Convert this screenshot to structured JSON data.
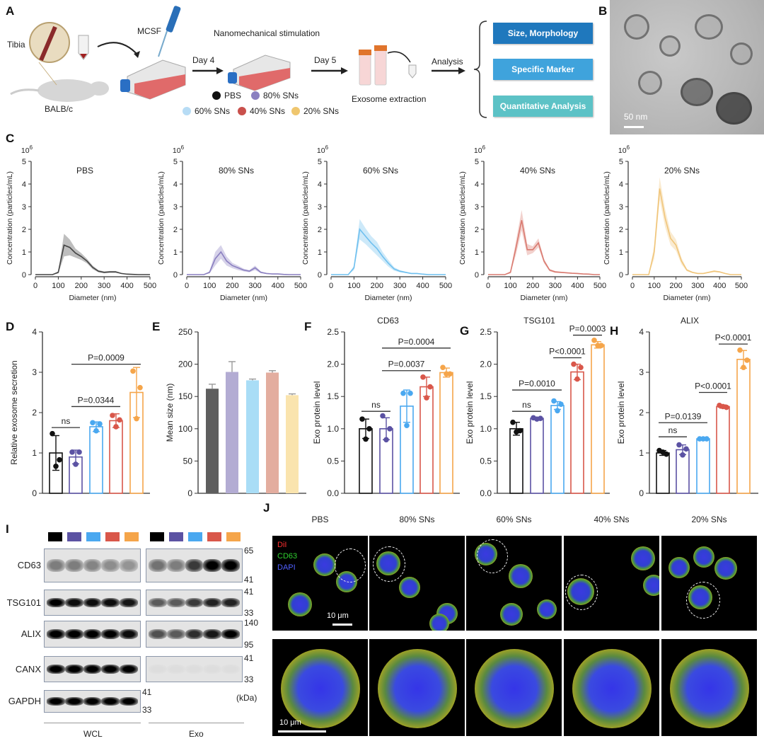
{
  "panel_labels": {
    "A": "A",
    "B": "B",
    "C": "C",
    "D": "D",
    "E": "E",
    "F": "F",
    "G": "G",
    "H": "H",
    "I": "I",
    "J": "J"
  },
  "groups": [
    {
      "name": "PBS",
      "color": "#111111"
    },
    {
      "name": "80% SNs",
      "color": "#5b52a3"
    },
    {
      "name": "60% SNs",
      "color": "#4aa8f0"
    },
    {
      "name": "40% SNs",
      "color": "#d9574a"
    },
    {
      "name": "20% SNs",
      "color": "#f5a54a"
    }
  ],
  "panelA": {
    "tibia": "Tibia",
    "mouse": "BALB/c",
    "mcsf": "MCSF",
    "stim_title": "Nanomechanical stimulation",
    "day4": "Day 4",
    "day5": "Day 5",
    "extraction": "Exosome extraction",
    "analysis": "Analysis",
    "legend": [
      {
        "label": "PBS",
        "color": "#111111"
      },
      {
        "label": "80% SNs",
        "color": "#8b80c0"
      },
      {
        "label": "60% SNs",
        "color": "#b7dcf5"
      },
      {
        "label": "40% SNs",
        "color": "#c9504c"
      },
      {
        "label": "20% SNs",
        "color": "#efc66e"
      }
    ],
    "analysis_boxes": [
      {
        "label": "Size, Morphology",
        "color": "#1f78bd"
      },
      {
        "label": "Specific Marker",
        "color": "#3fa3dc"
      },
      {
        "label": "Quantitative Analysis",
        "color": "#5cc2c6"
      }
    ]
  },
  "panelB": {
    "scale_bar": "50 nm"
  },
  "chart_data": [
    {
      "id": "C1",
      "type": "line",
      "title": "PBS",
      "xlabel": "Diameter (nm)",
      "ylabel": "Concentration (particles/mL)",
      "yexp": "10",
      "yexp_power": "6",
      "color": "#444444",
      "xlim": [
        0,
        500
      ],
      "ylim": [
        0,
        5
      ],
      "xticks": [
        "0",
        "100",
        "200",
        "300",
        "400",
        "500"
      ],
      "yticks": [
        "0",
        "1",
        "2",
        "3",
        "4",
        "5"
      ],
      "x": [
        0,
        25,
        50,
        75,
        100,
        125,
        150,
        175,
        200,
        225,
        250,
        275,
        300,
        325,
        350,
        375,
        400,
        425,
        450,
        475,
        500
      ],
      "y": [
        0,
        0,
        0,
        0,
        0.1,
        1.3,
        1.2,
        0.95,
        0.8,
        0.6,
        0.32,
        0.15,
        0.1,
        0.12,
        0.12,
        0.05,
        0.02,
        0.01,
        0,
        0,
        0
      ],
      "band": [
        0,
        0,
        0,
        0,
        0.05,
        0.5,
        0.35,
        0.2,
        0.15,
        0.1,
        0.08,
        0.05,
        0.04,
        0.04,
        0.04,
        0.02,
        0.01,
        0,
        0,
        0,
        0
      ]
    },
    {
      "id": "C2",
      "type": "line",
      "title": "80% SNs",
      "xlabel": "Diameter (nm)",
      "ylabel": "Concentration (particles/mL)",
      "yexp": "10",
      "yexp_power": "6",
      "color": "#8a7fc0",
      "xlim": [
        0,
        500
      ],
      "ylim": [
        0,
        5
      ],
      "xticks": [
        "0",
        "100",
        "200",
        "300",
        "400",
        "500"
      ],
      "yticks": [
        "0",
        "1",
        "2",
        "3",
        "4",
        "5"
      ],
      "x": [
        0,
        25,
        50,
        75,
        100,
        125,
        150,
        175,
        200,
        225,
        250,
        275,
        300,
        325,
        350,
        375,
        400,
        425,
        450,
        475,
        500
      ],
      "y": [
        0,
        0,
        0,
        0,
        0.1,
        0.7,
        1.0,
        0.6,
        0.4,
        0.3,
        0.2,
        0.15,
        0.3,
        0.1,
        0.05,
        0.03,
        0.03,
        0.01,
        0,
        0,
        0
      ],
      "band": [
        0,
        0,
        0,
        0,
        0.05,
        0.3,
        0.3,
        0.2,
        0.12,
        0.1,
        0.06,
        0.05,
        0.1,
        0.04,
        0.02,
        0.01,
        0.01,
        0,
        0,
        0,
        0
      ]
    },
    {
      "id": "C3",
      "type": "line",
      "title": "60% SNs",
      "xlabel": "Diameter (nm)",
      "ylabel": "Concentration (particles/mL)",
      "yexp": "10",
      "yexp_power": "6",
      "color": "#6fc0ef",
      "xlim": [
        0,
        500
      ],
      "ylim": [
        0,
        5
      ],
      "xticks": [
        "0",
        "100",
        "200",
        "300",
        "400",
        "500"
      ],
      "yticks": [
        "0",
        "1",
        "2",
        "3",
        "4",
        "5"
      ],
      "x": [
        0,
        25,
        50,
        75,
        100,
        125,
        150,
        175,
        200,
        225,
        250,
        275,
        300,
        325,
        350,
        375,
        400,
        425,
        450,
        475,
        500
      ],
      "y": [
        0,
        0,
        0,
        0,
        0.3,
        2.0,
        1.7,
        1.4,
        1.15,
        0.8,
        0.5,
        0.25,
        0.15,
        0.1,
        0.05,
        0.05,
        0.02,
        0,
        0,
        0,
        0
      ],
      "band": [
        0,
        0,
        0,
        0,
        0.1,
        0.45,
        0.35,
        0.3,
        0.3,
        0.2,
        0.15,
        0.08,
        0.05,
        0.03,
        0.02,
        0.02,
        0.01,
        0,
        0,
        0,
        0
      ]
    },
    {
      "id": "C4",
      "type": "line",
      "title": "40% SNs",
      "xlabel": "Diameter (nm)",
      "ylabel": "Concentration (particles/mL)",
      "yexp": "10",
      "yexp_power": "6",
      "color": "#d97a70",
      "xlim": [
        0,
        500
      ],
      "ylim": [
        0,
        5
      ],
      "xticks": [
        "0",
        "100",
        "200",
        "300",
        "400",
        "500"
      ],
      "yticks": [
        "0",
        "1",
        "2",
        "3",
        "4",
        "5"
      ],
      "x": [
        0,
        25,
        50,
        75,
        100,
        125,
        150,
        175,
        200,
        225,
        250,
        275,
        300,
        325,
        350,
        375,
        400,
        425,
        450,
        475,
        500
      ],
      "y": [
        0,
        0,
        0,
        0,
        0.1,
        1.2,
        2.4,
        1.1,
        1.1,
        1.4,
        0.6,
        0.2,
        0.12,
        0.1,
        0.08,
        0.06,
        0.05,
        0.03,
        0.02,
        0,
        0
      ],
      "band": [
        0,
        0,
        0,
        0,
        0.05,
        0.3,
        0.45,
        0.25,
        0.15,
        0.2,
        0.1,
        0.05,
        0.04,
        0.03,
        0.02,
        0.02,
        0.02,
        0.01,
        0.01,
        0,
        0
      ]
    },
    {
      "id": "C5",
      "type": "line",
      "title": "20% SNs",
      "xlabel": "Diameter (nm)",
      "ylabel": "Concentration (particles/mL)",
      "yexp": "10",
      "yexp_power": "6",
      "color": "#f0c57a",
      "xlim": [
        0,
        500
      ],
      "ylim": [
        0,
        5
      ],
      "xticks": [
        "0",
        "100",
        "200",
        "300",
        "400",
        "500"
      ],
      "yticks": [
        "0",
        "1",
        "2",
        "3",
        "4",
        "5"
      ],
      "x": [
        0,
        25,
        50,
        75,
        100,
        125,
        150,
        175,
        200,
        225,
        250,
        275,
        300,
        325,
        350,
        375,
        400,
        425,
        450,
        475,
        500
      ],
      "y": [
        0,
        0,
        0,
        0,
        1.0,
        3.8,
        2.5,
        1.6,
        1.3,
        0.6,
        0.2,
        0.1,
        0.05,
        0.05,
        0.1,
        0.15,
        0.12,
        0.05,
        0,
        0,
        0
      ],
      "band": [
        0,
        0,
        0,
        0,
        0.3,
        0.5,
        0.4,
        0.3,
        0.25,
        0.15,
        0.05,
        0.03,
        0.02,
        0.02,
        0.03,
        0.04,
        0.03,
        0.02,
        0,
        0,
        0
      ]
    },
    {
      "id": "D",
      "type": "bar",
      "style": "open",
      "title": "",
      "ylabel": "Relative  exosome secretion",
      "ylim": [
        0,
        4
      ],
      "yticks": [
        "0",
        "1",
        "2",
        "3",
        "4"
      ],
      "categories": [
        "PBS",
        "80% SNs",
        "60% SNs",
        "40% SNs",
        "20% SNs"
      ],
      "values": [
        1.0,
        0.9,
        1.65,
        1.8,
        2.5
      ],
      "sd": [
        0.43,
        0.17,
        0.12,
        0.17,
        0.62
      ],
      "points": [
        [
          1.48,
          0.83,
          0.67
        ],
        [
          1.02,
          1.02,
          0.72
        ],
        [
          1.75,
          1.72,
          1.55
        ],
        [
          1.93,
          1.82,
          1.65
        ],
        [
          3.03,
          2.62,
          1.85
        ]
      ],
      "comparisons": [
        {
          "from": 0,
          "to": 1,
          "y": 1.63,
          "label": "ns"
        },
        {
          "from": 1,
          "to": 3,
          "y": 2.15,
          "label": "P=0.0344"
        },
        {
          "from": 1,
          "to": 4,
          "y": 3.2,
          "label": "P=0.0009"
        }
      ]
    },
    {
      "id": "E",
      "type": "bar",
      "style": "filled",
      "title": "",
      "ylabel": "Mean size (nm)",
      "ylim": [
        0,
        250
      ],
      "yticks": [
        "0",
        "50",
        "100",
        "150",
        "200",
        "250"
      ],
      "categories": [
        "PBS",
        "80% SNs",
        "60% SNs",
        "40% SNs",
        "20% SNs"
      ],
      "fill_colors": [
        "#5e5e5e",
        "#b3acd3",
        "#a9ddf6",
        "#e3ad9f",
        "#fae4ae"
      ],
      "values": [
        162,
        188,
        175,
        187,
        152
      ],
      "sd": [
        7,
        16,
        2,
        3,
        2
      ],
      "points": [],
      "comparisons": []
    },
    {
      "id": "F",
      "type": "bar",
      "style": "open",
      "title": "CD63",
      "ylabel": "Exo protein level",
      "ylim": [
        0,
        2.5
      ],
      "yticks": [
        "0.0",
        "0.5",
        "1.0",
        "1.5",
        "2.0",
        "2.5"
      ],
      "categories": [
        "PBS",
        "80% SNs",
        "60% SNs",
        "40% SNs",
        "20% SNs"
      ],
      "values": [
        1.0,
        1.0,
        1.35,
        1.65,
        1.87
      ],
      "sd": [
        0.15,
        0.17,
        0.25,
        0.15,
        0.07
      ],
      "points": [
        [
          1.15,
          1.0,
          0.84
        ],
        [
          1.2,
          1.0,
          0.83
        ],
        [
          1.55,
          1.55,
          1.05
        ],
        [
          1.8,
          1.65,
          1.48
        ],
        [
          1.95,
          1.85,
          1.85
        ]
      ],
      "comparisons": [
        {
          "from": 0,
          "to": 1,
          "y": 1.27,
          "label": "ns"
        },
        {
          "from": 1,
          "to": 3,
          "y": 1.9,
          "label": "P=0.0037"
        },
        {
          "from": 1,
          "to": 4,
          "y": 2.25,
          "label": "P=0.0004"
        }
      ]
    },
    {
      "id": "G",
      "type": "bar",
      "style": "open",
      "title": "TSG101",
      "ylabel": "Exo protein level",
      "ylim": [
        0,
        2.5
      ],
      "yticks": [
        "0.0",
        "0.5",
        "1.0",
        "1.5",
        "2.0",
        "2.5"
      ],
      "categories": [
        "PBS",
        "80% SNs",
        "60% SNs",
        "40% SNs",
        "20% SNs"
      ],
      "values": [
        1.0,
        1.16,
        1.36,
        1.88,
        2.3
      ],
      "sd": [
        0.1,
        0.01,
        0.06,
        0.12,
        0.05
      ],
      "points": [
        [
          1.1,
          0.97,
          0.95
        ],
        [
          1.17,
          1.16,
          1.15
        ],
        [
          1.43,
          1.38,
          1.28
        ],
        [
          2.0,
          1.95,
          1.77
        ],
        [
          2.37,
          2.29,
          2.29
        ]
      ],
      "comparisons": [
        {
          "from": 0,
          "to": 1,
          "y": 1.27,
          "label": "ns"
        },
        {
          "from": 0,
          "to": 2,
          "y": 1.6,
          "label": "P=0.0010"
        },
        {
          "from": 2,
          "to": 3,
          "y": 2.1,
          "label": "P<0.0001"
        },
        {
          "from": 3,
          "to": 4,
          "y": 2.45,
          "label": "P=0.0003"
        }
      ]
    },
    {
      "id": "H",
      "type": "bar",
      "style": "open",
      "title": "ALIX",
      "ylabel": "Exo protein level",
      "ylim": [
        0,
        4
      ],
      "yticks": [
        "0",
        "1",
        "2",
        "3",
        "4"
      ],
      "categories": [
        "PBS",
        "80% SNs",
        "60% SNs",
        "40% SNs",
        "20% SNs"
      ],
      "values": [
        1.0,
        1.08,
        1.35,
        2.15,
        3.32
      ],
      "sd": [
        0.06,
        0.12,
        0.01,
        0.04,
        0.22
      ],
      "points": [
        [
          1.06,
          0.97,
          1.02
        ],
        [
          1.2,
          1.1,
          0.95
        ],
        [
          1.35,
          1.35,
          1.35
        ],
        [
          2.18,
          2.13,
          2.15
        ],
        [
          3.55,
          3.3,
          3.12
        ]
      ],
      "comparisons": [
        {
          "from": 0,
          "to": 1,
          "y": 1.4,
          "label": "ns"
        },
        {
          "from": 0,
          "to": 2,
          "y": 1.75,
          "label": "P=0.0139"
        },
        {
          "from": 2,
          "to": 3,
          "y": 2.5,
          "label": "P<0.0001"
        },
        {
          "from": 3,
          "to": 4,
          "y": 3.7,
          "label": "P<0.0001"
        }
      ]
    }
  ],
  "panelI": {
    "rows": [
      {
        "label": "CD63",
        "wcl": [
          0.45,
          0.45,
          0.42,
          0.38,
          0.35
        ],
        "exo": [
          0.5,
          0.45,
          0.75,
          1,
          1
        ],
        "markers": [
          "65",
          "41"
        ]
      },
      {
        "label": "TSG101",
        "wcl": [
          1,
          0.95,
          0.95,
          0.95,
          0.9
        ],
        "exo": [
          0.6,
          0.6,
          0.75,
          0.85,
          0.85
        ],
        "markers": [
          "41",
          "33"
        ]
      },
      {
        "label": "ALIX",
        "wcl": [
          1,
          1,
          1,
          1,
          0.95
        ],
        "exo": [
          0.65,
          0.6,
          0.8,
          0.9,
          1
        ],
        "markers": [
          "140",
          "95"
        ]
      },
      {
        "label": "CANX",
        "wcl": [
          1,
          1,
          1,
          1,
          1
        ],
        "exo": [
          0.03,
          0.03,
          0.03,
          0.03,
          0.03
        ],
        "markers": [
          "41",
          "33"
        ]
      },
      {
        "label": "GAPDH",
        "wcl": [
          1,
          1,
          1,
          1,
          1
        ],
        "exo": null,
        "markers": [
          "41",
          "33"
        ]
      }
    ],
    "unit": "(kDa)",
    "wcl_label": "WCL",
    "exo_label": "Exo"
  },
  "panelJ": {
    "columns": [
      "PBS",
      "80% SNs",
      "60% SNs",
      "40% SNs",
      "20% SNs"
    ],
    "channels": [
      {
        "label": "DiI",
        "color": "#ff3030"
      },
      {
        "label": "CD63",
        "color": "#30d030"
      },
      {
        "label": "DAPI",
        "color": "#5060ff"
      }
    ],
    "scale_bar": "10 μm"
  }
}
